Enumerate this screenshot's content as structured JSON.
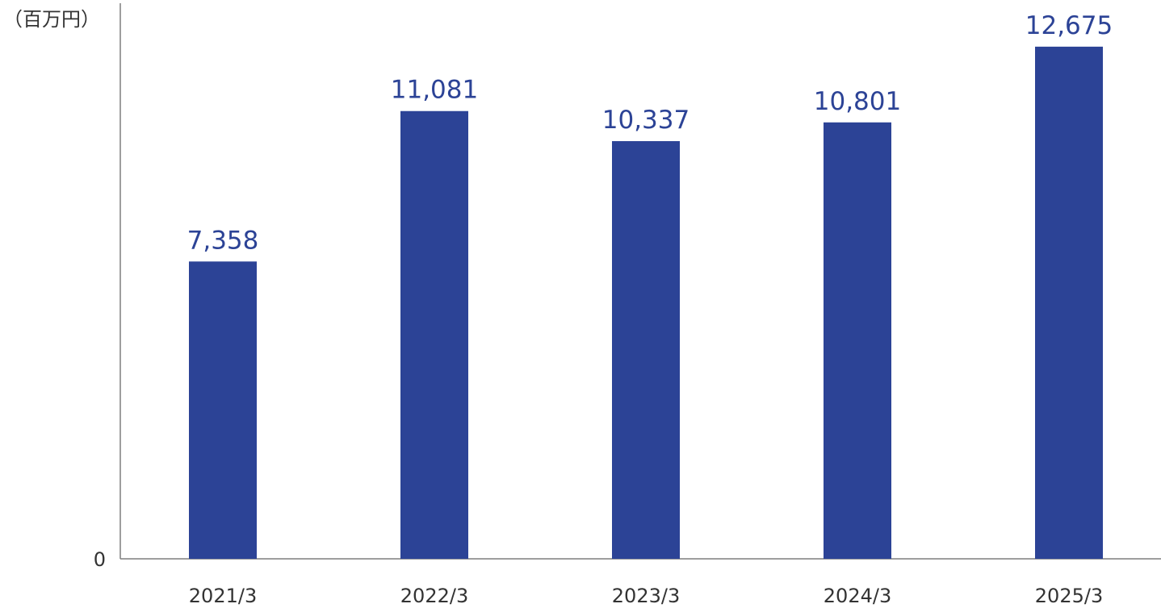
{
  "chart_data": {
    "type": "bar",
    "unit_label": "（百万円）",
    "categories": [
      "2021/3",
      "2022/3",
      "2023/3",
      "2024/3",
      "2025/3"
    ],
    "values": [
      7358,
      11081,
      10337,
      10801,
      12675
    ],
    "value_labels": [
      "7,358",
      "11,081",
      "10,337",
      "10,801",
      "12,675"
    ],
    "y_tick_labels": [
      "0"
    ],
    "ylim": [
      0,
      13750
    ],
    "grid": false,
    "legend": "none",
    "bar_color": "#2c4396",
    "label_color": "#2c4396",
    "axis_color": "#7f7f7f"
  }
}
